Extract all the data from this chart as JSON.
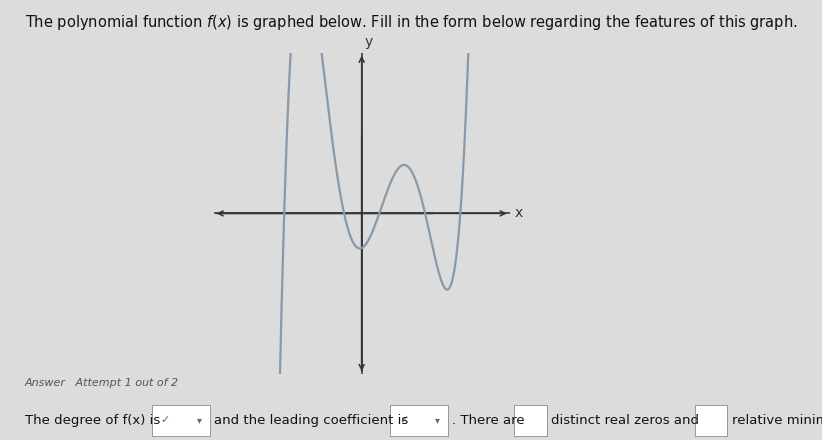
{
  "bg_color": "#dcdcdc",
  "graph_bg": "#dcdcdc",
  "curve_color": "#8899aa",
  "axis_color": "#333333",
  "title_text": "The polynomial function $f(x)$ is graphed below. Fill in the form below regarding the features of this graph.",
  "title_fontsize": 10.5,
  "answer_label": "Answer   Attempt 1 out of 2",
  "bottom_text1": "The degree of f(x) is",
  "bottom_text2": "and the leading coefficient is",
  "bottom_text3": ". There are",
  "bottom_text4": "distinct real zeros and",
  "bottom_text5": "relative minimums.",
  "xlabel": "x",
  "ylabel": "y",
  "xlim": [
    -4.2,
    4.2
  ],
  "ylim": [
    -4.5,
    4.5
  ],
  "curve_linewidth": 1.6,
  "axis_linewidth": 1.1,
  "roots": [
    -2.2,
    -0.5,
    0.5,
    1.8,
    2.8
  ],
  "curve_scale": 0.35,
  "x_start": -3.2,
  "x_end": 3.2
}
